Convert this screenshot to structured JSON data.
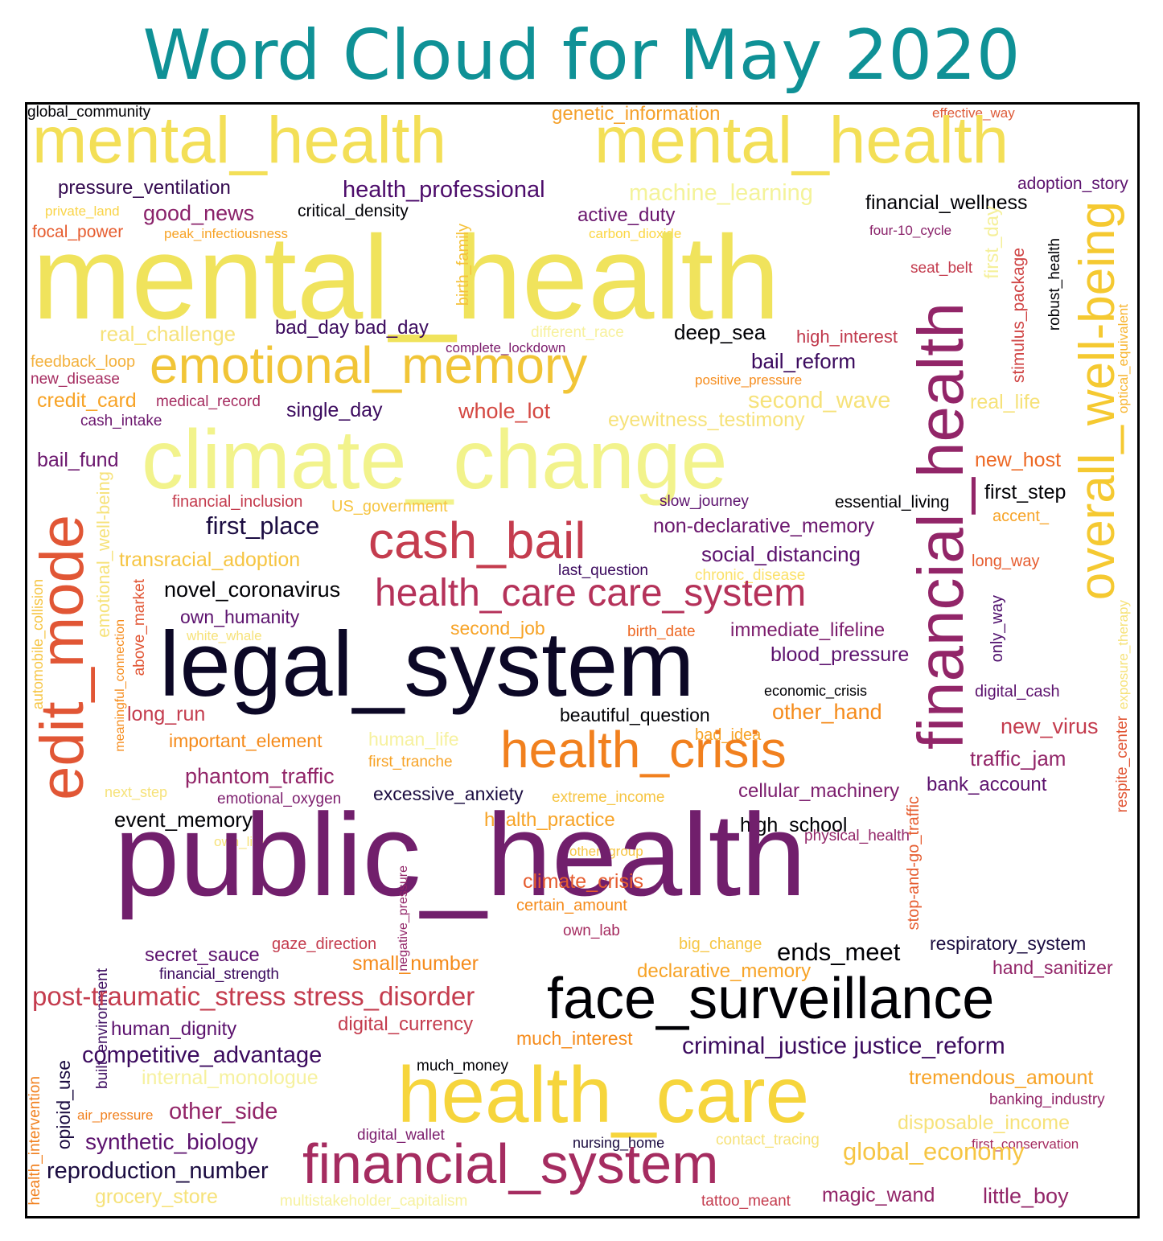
{
  "title": "Word Cloud for May 2020",
  "palette": {
    "title_color": "#0f9196",
    "frame_color": "#000000"
  },
  "words": [
    {
      "text": "global_community",
      "color": "#000004",
      "weight": 1
    },
    {
      "text": "genetic_information",
      "color": "#f4a02a",
      "weight": 1
    },
    {
      "text": "effective_way",
      "color": "#dd5a38",
      "weight": 1
    },
    {
      "text": "mental_health",
      "color": "#f3df57",
      "weight": 4
    },
    {
      "text": "mental_health",
      "color": "#f3df57",
      "weight": 4
    },
    {
      "text": "pressure_ventilation",
      "color": "#33094f",
      "weight": 1
    },
    {
      "text": "health_professional",
      "color": "#4d0c6b",
      "weight": 1
    },
    {
      "text": "machine_learning",
      "color": "#f4f39a",
      "weight": 1
    },
    {
      "text": "adoption_story",
      "color": "#5c126e",
      "weight": 1
    },
    {
      "text": "private_land",
      "color": "#f9d449",
      "weight": 1
    },
    {
      "text": "good_news",
      "color": "#8a226a",
      "weight": 1
    },
    {
      "text": "critical_density",
      "color": "#000004",
      "weight": 1
    },
    {
      "text": "active_duty",
      "color": "#6b176e",
      "weight": 1
    },
    {
      "text": "financial_wellness",
      "color": "#000004",
      "weight": 1
    },
    {
      "text": "focal_power",
      "color": "#e65d30",
      "weight": 1
    },
    {
      "text": "peak_infectiousness",
      "color": "#f7a326",
      "weight": 1
    },
    {
      "text": "carbon_dioxide",
      "color": "#fbd643",
      "weight": 1
    },
    {
      "text": "four-10_cycle",
      "color": "#8a226a",
      "weight": 1
    },
    {
      "text": "mental_health",
      "color": "#f0e35c",
      "weight": 5
    },
    {
      "text": "birth_family",
      "color": "#f5c23b",
      "weight": 1
    },
    {
      "text": "seat_belt",
      "color": "#c43c4e",
      "weight": 1
    },
    {
      "text": "first_day",
      "color": "#f5f09b",
      "weight": 1
    },
    {
      "text": "stimulus_package",
      "color": "#d04545",
      "weight": 1
    },
    {
      "text": "robust_health",
      "color": "#000004",
      "weight": 1
    },
    {
      "text": "overall_well-being",
      "color": "#f5c931",
      "weight": 3
    },
    {
      "text": "optical_equivalent",
      "color": "#f7b531",
      "weight": 1
    },
    {
      "text": "real_challenge",
      "color": "#f6e27a",
      "weight": 1
    },
    {
      "text": "bad_day bad_day",
      "color": "#3b0a5e",
      "weight": 1
    },
    {
      "text": "different_race",
      "color": "#f7f19e",
      "weight": 1
    },
    {
      "text": "deep_sea",
      "color": "#000004",
      "weight": 1
    },
    {
      "text": "high_interest",
      "color": "#c0394c",
      "weight": 1
    },
    {
      "text": "complete_lockdown",
      "color": "#7c1d6d",
      "weight": 1
    },
    {
      "text": "financial_health",
      "color": "#922568",
      "weight": 3
    },
    {
      "text": "feedback_loop",
      "color": "#f3b13d",
      "weight": 1
    },
    {
      "text": "emotional_memory",
      "color": "#f1c537",
      "weight": 3
    },
    {
      "text": "bail_reform",
      "color": "#3b0a5e",
      "weight": 1
    },
    {
      "text": "new_disease",
      "color": "#a52c60",
      "weight": 1
    },
    {
      "text": "positive_pressure",
      "color": "#f58b1b",
      "weight": 1
    },
    {
      "text": "credit_card",
      "color": "#f7a326",
      "weight": 1
    },
    {
      "text": "medical_record",
      "color": "#a52c60",
      "weight": 1
    },
    {
      "text": "second_wave",
      "color": "#f6e27a",
      "weight": 1
    },
    {
      "text": "real_life",
      "color": "#f6e27a",
      "weight": 1
    },
    {
      "text": "single_day",
      "color": "#3b0a5e",
      "weight": 1
    },
    {
      "text": "whole_lot",
      "color": "#d44842",
      "weight": 1
    },
    {
      "text": "cash_intake",
      "color": "#6b176e",
      "weight": 1
    },
    {
      "text": "eyewitness_testimony",
      "color": "#f6e27a",
      "weight": 1
    },
    {
      "text": "climate_change",
      "color": "#f2f38c",
      "weight": 4
    },
    {
      "text": "bail_fund",
      "color": "#6b176e",
      "weight": 1
    },
    {
      "text": "new_host",
      "color": "#ed6925",
      "weight": 1
    },
    {
      "text": "financial_inclusion",
      "color": "#c43c4e",
      "weight": 1
    },
    {
      "text": "US_government",
      "color": "#f6c543",
      "weight": 1
    },
    {
      "text": "slow_journey",
      "color": "#5c126e",
      "weight": 1
    },
    {
      "text": "essential_living",
      "color": "#000004",
      "weight": 1
    },
    {
      "text": "first_step",
      "color": "#000004",
      "weight": 1
    },
    {
      "text": "edit_mode",
      "color": "#e15635",
      "weight": 3
    },
    {
      "text": "accent_",
      "color": "#f7a326",
      "weight": 1
    },
    {
      "text": "first_place",
      "color": "#1b0c41",
      "weight": 1
    },
    {
      "text": "cash_bail",
      "color": "#c43c4e",
      "weight": 3
    },
    {
      "text": "non-declarative_memory",
      "color": "#6b176e",
      "weight": 1
    },
    {
      "text": "emotional_well-being",
      "color": "#f6e27a",
      "weight": 1
    },
    {
      "text": "transracial_adoption",
      "color": "#f6c543",
      "weight": 1
    },
    {
      "text": "social_distancing",
      "color": "#5c126e",
      "weight": 1
    },
    {
      "text": "long_way",
      "color": "#e65d30",
      "weight": 1
    },
    {
      "text": "last_question",
      "color": "#3b0a5e",
      "weight": 1
    },
    {
      "text": "chronic_disease",
      "color": "#fbe16a",
      "weight": 1
    },
    {
      "text": "novel_coronavirus",
      "color": "#000004",
      "weight": 1
    },
    {
      "text": "health_care care_system",
      "color": "#b5325a",
      "weight": 2
    },
    {
      "text": "automobile_collision",
      "color": "#f6c543",
      "weight": 1
    },
    {
      "text": "meaningful_connection",
      "color": "#f58b1b",
      "weight": 1
    },
    {
      "text": "above_market",
      "color": "#e15635",
      "weight": 1
    },
    {
      "text": "own_humanity",
      "color": "#5c126e",
      "weight": 1
    },
    {
      "text": "only_way",
      "color": "#4d0c6b",
      "weight": 1
    },
    {
      "text": "exposure_therapy",
      "color": "#f6e27a",
      "weight": 1
    },
    {
      "text": "white_whale",
      "color": "#f6e27a",
      "weight": 1
    },
    {
      "text": "second_job",
      "color": "#f7a326",
      "weight": 1
    },
    {
      "text": "birth_date",
      "color": "#ed6925",
      "weight": 1
    },
    {
      "text": "immediate_lifeline",
      "color": "#7c1d6d",
      "weight": 1
    },
    {
      "text": "legal_system",
      "color": "#0c0826",
      "weight": 5
    },
    {
      "text": "blood_pressure",
      "color": "#5c126e",
      "weight": 1
    },
    {
      "text": "economic_crisis",
      "color": "#000004",
      "weight": 1
    },
    {
      "text": "digital_cash",
      "color": "#5c126e",
      "weight": 1
    },
    {
      "text": "long_run",
      "color": "#c43c4e",
      "weight": 1
    },
    {
      "text": "beautiful_question",
      "color": "#000004",
      "weight": 1
    },
    {
      "text": "other_hand",
      "color": "#f58b1b",
      "weight": 1
    },
    {
      "text": "important_element",
      "color": "#f58b1b",
      "weight": 1
    },
    {
      "text": "human_life",
      "color": "#f6f19f",
      "weight": 1
    },
    {
      "text": "bad_idea",
      "color": "#f7a326",
      "weight": 1
    },
    {
      "text": "new_virus",
      "color": "#c43c4e",
      "weight": 1
    },
    {
      "text": "health_crisis",
      "color": "#f1801e",
      "weight": 3
    },
    {
      "text": "first_tranche",
      "color": "#f7a326",
      "weight": 1
    },
    {
      "text": "traffic_jam",
      "color": "#922568",
      "weight": 1
    },
    {
      "text": "phantom_traffic",
      "color": "#922568",
      "weight": 1
    },
    {
      "text": "next_step",
      "color": "#f6e27a",
      "weight": 1
    },
    {
      "text": "emotional_oxygen",
      "color": "#7c1d6d",
      "weight": 1
    },
    {
      "text": "excessive_anxiety",
      "color": "#1b0c41",
      "weight": 1
    },
    {
      "text": "extreme_income",
      "color": "#f6c543",
      "weight": 1
    },
    {
      "text": "cellular_machinery",
      "color": "#7c1d6d",
      "weight": 1
    },
    {
      "text": "bank_account",
      "color": "#5c126e",
      "weight": 1
    },
    {
      "text": "event_memory",
      "color": "#000004",
      "weight": 1
    },
    {
      "text": "stop-and-go_traffic",
      "color": "#e65d30",
      "weight": 1
    },
    {
      "text": "health_practice",
      "color": "#f7a326",
      "weight": 1
    },
    {
      "text": "high_school",
      "color": "#000004",
      "weight": 1
    },
    {
      "text": "respite_center",
      "color": "#e15635",
      "weight": 1
    },
    {
      "text": "own_life",
      "color": "#f6e27a",
      "weight": 1
    },
    {
      "text": "other_group",
      "color": "#f6c543",
      "weight": 1
    },
    {
      "text": "physical_health",
      "color": "#922568",
      "weight": 1
    },
    {
      "text": "public_health",
      "color": "#711f6c",
      "weight": 5
    },
    {
      "text": "built_environment",
      "color": "#3b0a5e",
      "weight": 1
    },
    {
      "text": "negative_pressure",
      "color": "#922568",
      "weight": 1
    },
    {
      "text": "climate_crisis",
      "color": "#e65d30",
      "weight": 1
    },
    {
      "text": "certain_amount",
      "color": "#f58b1b",
      "weight": 1
    },
    {
      "text": "own_lab",
      "color": "#a52c60",
      "weight": 1
    },
    {
      "text": "gaze_direction",
      "color": "#c43c4e",
      "weight": 1
    },
    {
      "text": "big_change",
      "color": "#f6c543",
      "weight": 1
    },
    {
      "text": "respiratory_system",
      "color": "#1b0c41",
      "weight": 1
    },
    {
      "text": "secret_sauce",
      "color": "#5c126e",
      "weight": 1
    },
    {
      "text": "ends_meet",
      "color": "#000004",
      "weight": 1
    },
    {
      "text": "small_number",
      "color": "#f58b1b",
      "weight": 1
    },
    {
      "text": "hand_sanitizer",
      "color": "#922568",
      "weight": 1
    },
    {
      "text": "financial_strength",
      "color": "#3b0a5e",
      "weight": 1
    },
    {
      "text": "declarative_memory",
      "color": "#f7a326",
      "weight": 1
    },
    {
      "text": "post-traumatic_stress stress_disorder",
      "color": "#c43c4e",
      "weight": 2
    },
    {
      "text": "face_surveillance",
      "color": "#000004",
      "weight": 3
    },
    {
      "text": "human_dignity",
      "color": "#5c126e",
      "weight": 1
    },
    {
      "text": "digital_currency",
      "color": "#c43c4e",
      "weight": 1
    },
    {
      "text": "health_intervention",
      "color": "#f1801e",
      "weight": 1
    },
    {
      "text": "opioid_use",
      "color": "#1b0c41",
      "weight": 1
    },
    {
      "text": "competitive_advantage",
      "color": "#3b0a5e",
      "weight": 1
    },
    {
      "text": "much_interest",
      "color": "#f58b1b",
      "weight": 1
    },
    {
      "text": "criminal_justice justice_reform",
      "color": "#3b0a5e",
      "weight": 1
    },
    {
      "text": "much_money",
      "color": "#000004",
      "weight": 1
    },
    {
      "text": "internal_monologue",
      "color": "#f6f19f",
      "weight": 1
    },
    {
      "text": "tremendous_amount",
      "color": "#f7a326",
      "weight": 1
    },
    {
      "text": "health_care",
      "color": "#f6d53c",
      "weight": 4
    },
    {
      "text": "banking_industry",
      "color": "#922568",
      "weight": 1
    },
    {
      "text": "air_pressure",
      "color": "#f1801e",
      "weight": 1
    },
    {
      "text": "other_side",
      "color": "#922568",
      "weight": 1
    },
    {
      "text": "disposable_income",
      "color": "#f6e27a",
      "weight": 1
    },
    {
      "text": "synthetic_biology",
      "color": "#5c126e",
      "weight": 1
    },
    {
      "text": "digital_wallet",
      "color": "#7c1d6d",
      "weight": 1
    },
    {
      "text": "first_conservation",
      "color": "#a52c60",
      "weight": 1
    },
    {
      "text": "nursing_home",
      "color": "#1b0c41",
      "weight": 1
    },
    {
      "text": "contact_tracing",
      "color": "#f6e27a",
      "weight": 1
    },
    {
      "text": "global_economy",
      "color": "#f6c543",
      "weight": 1
    },
    {
      "text": "reproduction_number",
      "color": "#1b0c41",
      "weight": 1
    },
    {
      "text": "financial_system",
      "color": "#a52c60",
      "weight": 3
    },
    {
      "text": "grocery_store",
      "color": "#f6e27a",
      "weight": 1
    },
    {
      "text": "multistakeholder_capitalism",
      "color": "#f6f19f",
      "weight": 1
    },
    {
      "text": "tattoo_meant",
      "color": "#c43c4e",
      "weight": 1
    },
    {
      "text": "magic_wand",
      "color": "#922568",
      "weight": 1
    },
    {
      "text": "little_boy",
      "color": "#922568",
      "weight": 1
    }
  ]
}
